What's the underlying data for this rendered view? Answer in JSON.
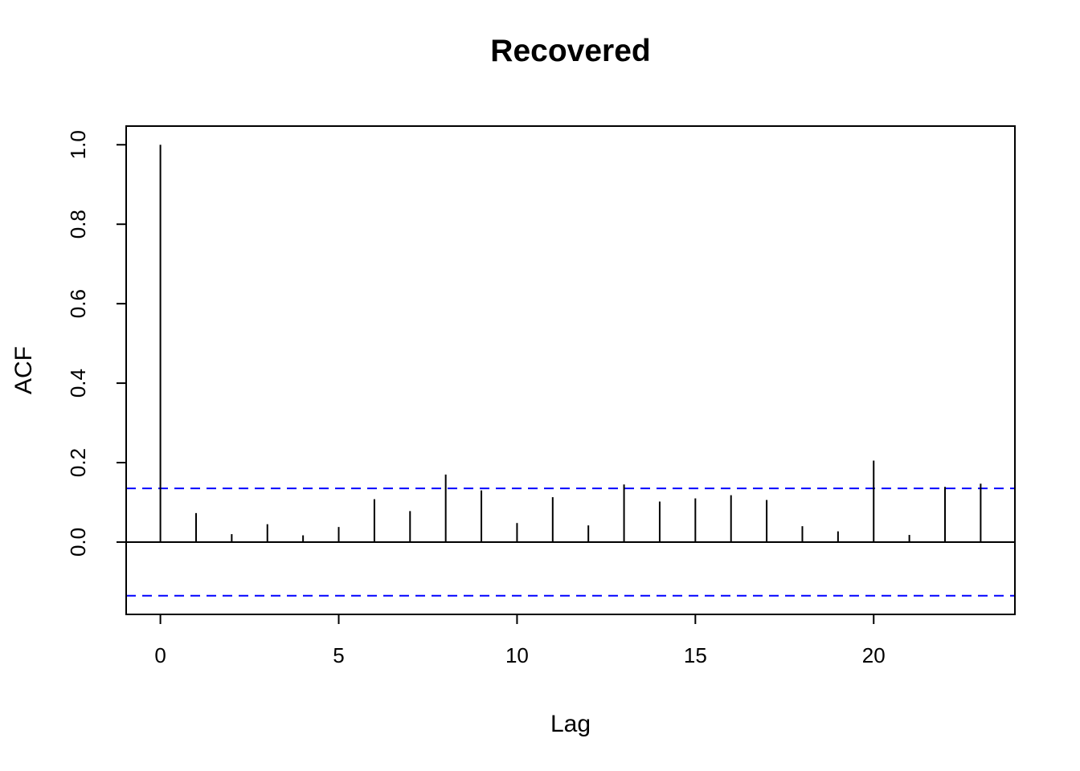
{
  "chart_data": {
    "type": "bar",
    "title": "Recovered",
    "xlabel": "Lag",
    "ylabel": "ACF",
    "x": [
      0,
      1,
      2,
      3,
      4,
      5,
      6,
      7,
      8,
      9,
      10,
      11,
      12,
      13,
      14,
      15,
      16,
      17,
      18,
      19,
      20,
      21,
      22,
      23
    ],
    "values": [
      1.0,
      0.073,
      0.02,
      0.045,
      0.017,
      0.038,
      0.108,
      0.078,
      0.17,
      0.13,
      0.048,
      0.113,
      0.042,
      0.145,
      0.102,
      0.11,
      0.118,
      0.106,
      0.04,
      0.027,
      0.205,
      0.018,
      0.139,
      0.147
    ],
    "x_ticks": [
      0,
      5,
      10,
      15,
      20
    ],
    "x_tick_labels": [
      "0",
      "5",
      "10",
      "15",
      "20"
    ],
    "y_ticks": [
      0.0,
      0.2,
      0.4,
      0.6,
      0.8,
      1.0
    ],
    "y_tick_labels": [
      "0.0",
      "0.2",
      "0.4",
      "0.6",
      "0.8",
      "1.0"
    ],
    "xlim": [
      -0.96,
      23.96
    ],
    "ylim": [
      -0.182,
      1.047
    ],
    "conf_upper": 0.135,
    "conf_lower": -0.135,
    "zero_line": 0.0,
    "bar_color": "#000000",
    "conf_line_color": "#0000ff",
    "axis_color": "#000000",
    "grid": false,
    "legend": null
  }
}
